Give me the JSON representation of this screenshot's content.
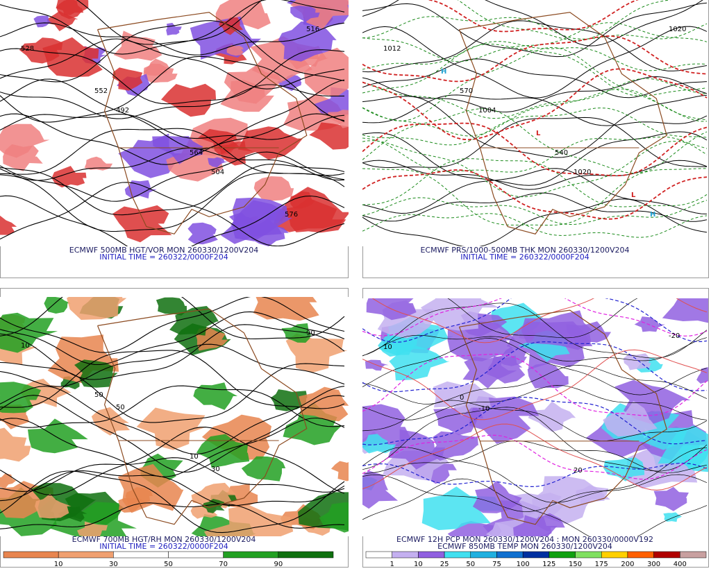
{
  "panels": [
    {
      "caption": "ECMWF 500MB HGT/VOR MON 260330/1200V204",
      "init": "INITIAL TIME = 260322/0000F204",
      "contour_labels": [
        "528",
        "492",
        "504",
        "516",
        "552",
        "564",
        "576"
      ]
    },
    {
      "caption": "ECMWF PRS/1000-500MB THK MON 260330/1200V204",
      "init": "INITIAL TIME = 260322/0000F204",
      "contour_labels": [
        "1012",
        "1004",
        "1020",
        "1020",
        "570",
        "540",
        "H",
        "H",
        "L",
        "L"
      ]
    },
    {
      "caption": "ECMWF 700MB HGT/RH MON 260330/1200V204",
      "init": "INITIAL TIME = 260322/0000F204",
      "contour_labels": [
        "10",
        "50",
        "30",
        "90",
        "50",
        "10"
      ],
      "colorbar": {
        "labels": [
          10,
          30,
          50,
          70,
          90
        ],
        "colors": [
          "#e8854f",
          "#f0a070",
          "#ffffff",
          "#ffffff",
          "#22a022",
          "#0f700f"
        ]
      }
    },
    {
      "caption": "ECMWF 12H PCP MON 260330/1200V204 : MON 260330/0000V192",
      "init": "ECMWF 850MB TEMP MON 260330/1200V204",
      "contour_labels": [
        "10",
        "-10",
        "20",
        "-20",
        "0"
      ],
      "colorbar": {
        "labels": [
          1,
          10,
          25,
          50,
          75,
          100,
          125,
          150,
          175,
          200,
          300,
          400
        ],
        "colors": [
          "#ffffff",
          "#c4b0f0",
          "#9060e0",
          "#40e0f0",
          "#20b0e0",
          "#1070d0",
          "#0030a0",
          "#10a010",
          "#80e060",
          "#ffd000",
          "#ff6000",
          "#b00000",
          "#c8a0a0"
        ]
      }
    }
  ]
}
